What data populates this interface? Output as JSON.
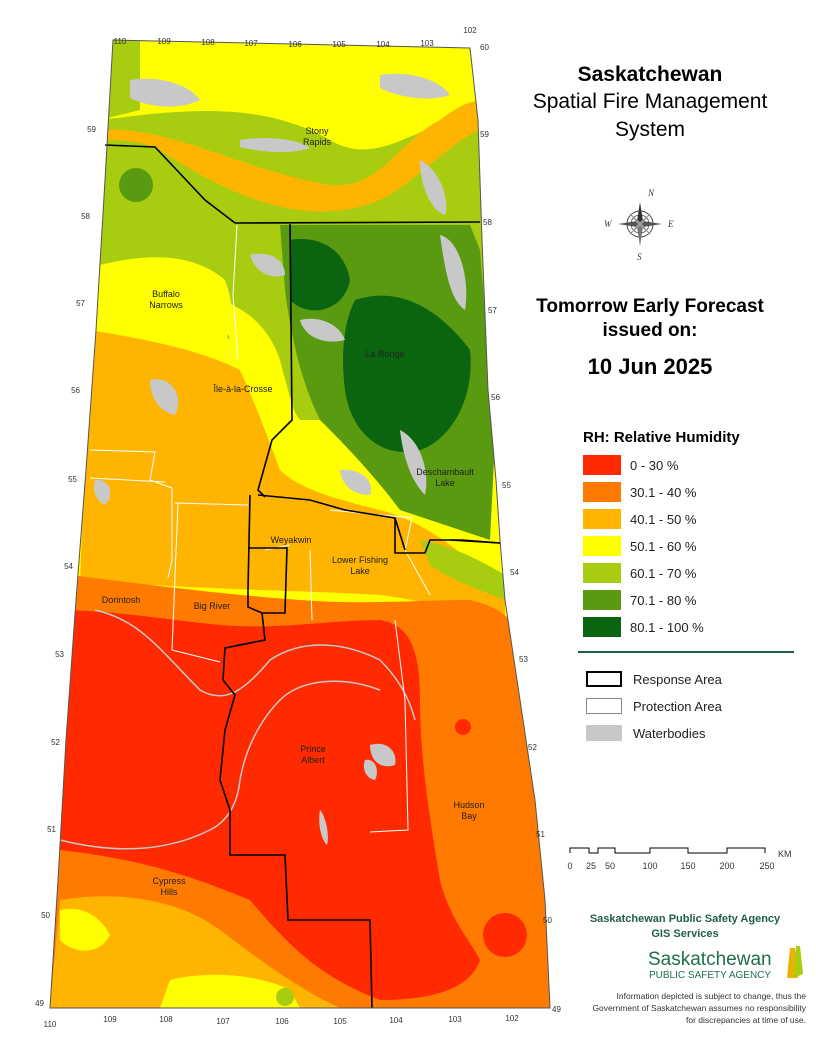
{
  "title": {
    "line1": "Saskatchewan",
    "line2": "Spatial Fire Management",
    "line3": "System"
  },
  "forecast": {
    "line1": "Tomorrow Early Forecast",
    "line2": "issued on:",
    "date": "10 Jun 2025"
  },
  "legend": {
    "title": "RH: Relative Humidity",
    "items": [
      {
        "label": "0 - 30 %",
        "color": "#ff2a00"
      },
      {
        "label": "30.1 - 40 %",
        "color": "#ff7a00"
      },
      {
        "label": "40.1 - 50 %",
        "color": "#ffb400"
      },
      {
        "label": "50.1 - 60 %",
        "color": "#ffff00"
      },
      {
        "label": "60.1 - 70 %",
        "color": "#a8cc10"
      },
      {
        "label": "70.1 - 80 %",
        "color": "#5a9a10"
      },
      {
        "label": "80.1 - 100 %",
        "color": "#0a6410"
      }
    ]
  },
  "overlays": {
    "response": "Response Area",
    "protection": "Protection Area",
    "waterbodies": "Waterbodies"
  },
  "scale": {
    "ticks": [
      "0",
      "25",
      "50",
      "100",
      "150",
      "200",
      "250"
    ],
    "unit": "KM"
  },
  "places": [
    "Stony Rapids",
    "Buffalo Narrows",
    "Île-à-la-Crosse",
    "La Ronge",
    "Deschambault Lake",
    "Weyakwin",
    "Lower Fishing Lake",
    "Dorintosh",
    "Big River",
    "Prince Albert",
    "Hudson Bay",
    "Cypress Hills"
  ],
  "longitudes_top": [
    "110",
    "109",
    "108",
    "107",
    "106",
    "105",
    "104",
    "103",
    "102"
  ],
  "longitudes_bottom": [
    "110",
    "109",
    "108",
    "107",
    "106",
    "105",
    "104",
    "103",
    "102"
  ],
  "latitudes": [
    "60",
    "59",
    "58",
    "57",
    "56",
    "55",
    "54",
    "53",
    "52",
    "51",
    "50",
    "49"
  ],
  "compass": {
    "n": "N",
    "s": "S",
    "e": "E",
    "w": "W"
  },
  "agency": {
    "line1": "Saskatchewan Public Safety Agency",
    "line2": "GIS  Services",
    "logo_line1": "Saskatchewan",
    "logo_line2": "PUBLIC SAFETY AGENCY"
  },
  "disclaimer": "Information depicted is subject to change, thus the Government of Saskatchewan assumes no responsibility for discrepancies at time of use."
}
